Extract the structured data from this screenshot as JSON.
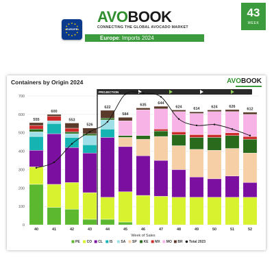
{
  "header": {
    "brand_avo": "AVO",
    "brand_book": "BOOK",
    "tagline": "CONNECTING THE GLOBAL AVOCADO MARKET",
    "badge": "EUROPE",
    "subtitle_region": "Europe",
    "subtitle_rest": ": Imports 2024",
    "week_number": "43",
    "week_label": "WEEK"
  },
  "card": {
    "title": "Containers by Origin 2024",
    "logo_avo": "AVO",
    "logo_book": "BOOK",
    "projection_label": "PROJECTION"
  },
  "chart_data": {
    "type": "bar",
    "stacked": true,
    "title": "Containers by Origin 2024",
    "xlabel": "Week of Sales",
    "ylabel": "",
    "ylim": [
      0,
      700
    ],
    "yticks": [
      0,
      100,
      200,
      300,
      400,
      500,
      600,
      700
    ],
    "grid": true,
    "legend_position": "bottom",
    "projection_from": "44",
    "categories": [
      "40",
      "41",
      "42",
      "43",
      "44",
      "45",
      "46",
      "47",
      "48",
      "49",
      "50",
      "51",
      "52"
    ],
    "totals_labels": [
      "555",
      "600",
      "553",
      "526",
      "622",
      "584",
      "635",
      "644",
      "624",
      "614",
      "624",
      "626",
      "612"
    ],
    "series": [
      {
        "name": "PE",
        "color": "#5cb82e",
        "values": [
          220,
          95,
          85,
          30,
          30,
          15,
          0,
          0,
          0,
          0,
          0,
          0,
          0
        ]
      },
      {
        "name": "CO",
        "color": "#d9f230",
        "values": [
          95,
          125,
          145,
          145,
          120,
          165,
          160,
          155,
          150,
          150,
          150,
          150,
          150
        ]
      },
      {
        "name": "CL",
        "color": "#7a0fa0",
        "values": [
          90,
          275,
          190,
          215,
          325,
          245,
          215,
          195,
          150,
          110,
          100,
          115,
          80
        ]
      },
      {
        "name": "IS",
        "color": "#16b3b3",
        "values": [
          75,
          55,
          55,
          45,
          45,
          0,
          0,
          0,
          0,
          0,
          0,
          0,
          0
        ]
      },
      {
        "name": "SA",
        "color": "#9fe0e8",
        "values": [
          25,
          15,
          20,
          50,
          50,
          0,
          0,
          0,
          0,
          0,
          0,
          0,
          0
        ]
      },
      {
        "name": "SP",
        "color": "#f7cfa6",
        "values": [
          0,
          0,
          0,
          0,
          0,
          50,
          90,
          130,
          130,
          150,
          155,
          150,
          160
        ]
      },
      {
        "name": "KE",
        "color": "#2a6a1c",
        "values": [
          15,
          0,
          10,
          10,
          10,
          10,
          20,
          30,
          60,
          65,
          70,
          70,
          75
        ]
      },
      {
        "name": "MX",
        "color": "#cc2a2a",
        "values": [
          20,
          25,
          20,
          0,
          0,
          0,
          0,
          10,
          15,
          15,
          15,
          15,
          15
        ]
      },
      {
        "name": "MO",
        "color": "#f7b3e6",
        "values": [
          0,
          0,
          0,
          0,
          0,
          80,
          140,
          110,
          110,
          115,
          125,
          115,
          120
        ]
      },
      {
        "name": "BR",
        "color": "#5a3a2a",
        "values": [
          15,
          10,
          28,
          31,
          42,
          19,
          10,
          14,
          9,
          9,
          9,
          11,
          12
        ]
      }
    ],
    "line": {
      "name": "Total 2023",
      "color": "#111111",
      "values": [
        310,
        340,
        440,
        505,
        560,
        710,
        715,
        695,
        575,
        540,
        545,
        520,
        485
      ]
    }
  }
}
